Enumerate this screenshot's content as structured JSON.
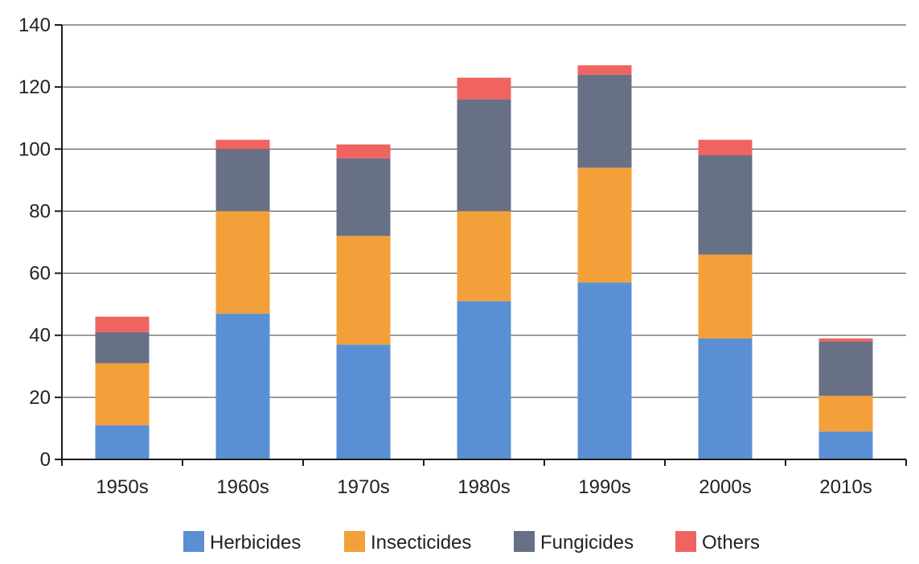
{
  "chart_data": {
    "type": "bar",
    "stacked": true,
    "title": "",
    "xlabel": "",
    "ylabel": "",
    "categories": [
      "1950s",
      "1960s",
      "1970s",
      "1980s",
      "1990s",
      "2000s",
      "2010s"
    ],
    "series": [
      {
        "name": "Herbicides",
        "color": "#5b8fd4",
        "values": [
          11,
          47,
          37,
          51,
          57,
          39,
          9
        ]
      },
      {
        "name": "Insecticides",
        "color": "#f4a03a",
        "values": [
          20,
          33,
          35,
          29,
          37,
          27,
          11.5
        ]
      },
      {
        "name": "Fungicides",
        "color": "#677085",
        "values": [
          10,
          20,
          25,
          36,
          30,
          32,
          17.5
        ]
      },
      {
        "name": "Others",
        "color": "#ef6461",
        "values": [
          5,
          3,
          4.5,
          7,
          3,
          5,
          1
        ]
      }
    ],
    "ylim": [
      0,
      140
    ],
    "yticks": [
      0,
      20,
      40,
      60,
      80,
      100,
      120,
      140
    ],
    "grid": true,
    "legend_position": "bottom"
  }
}
